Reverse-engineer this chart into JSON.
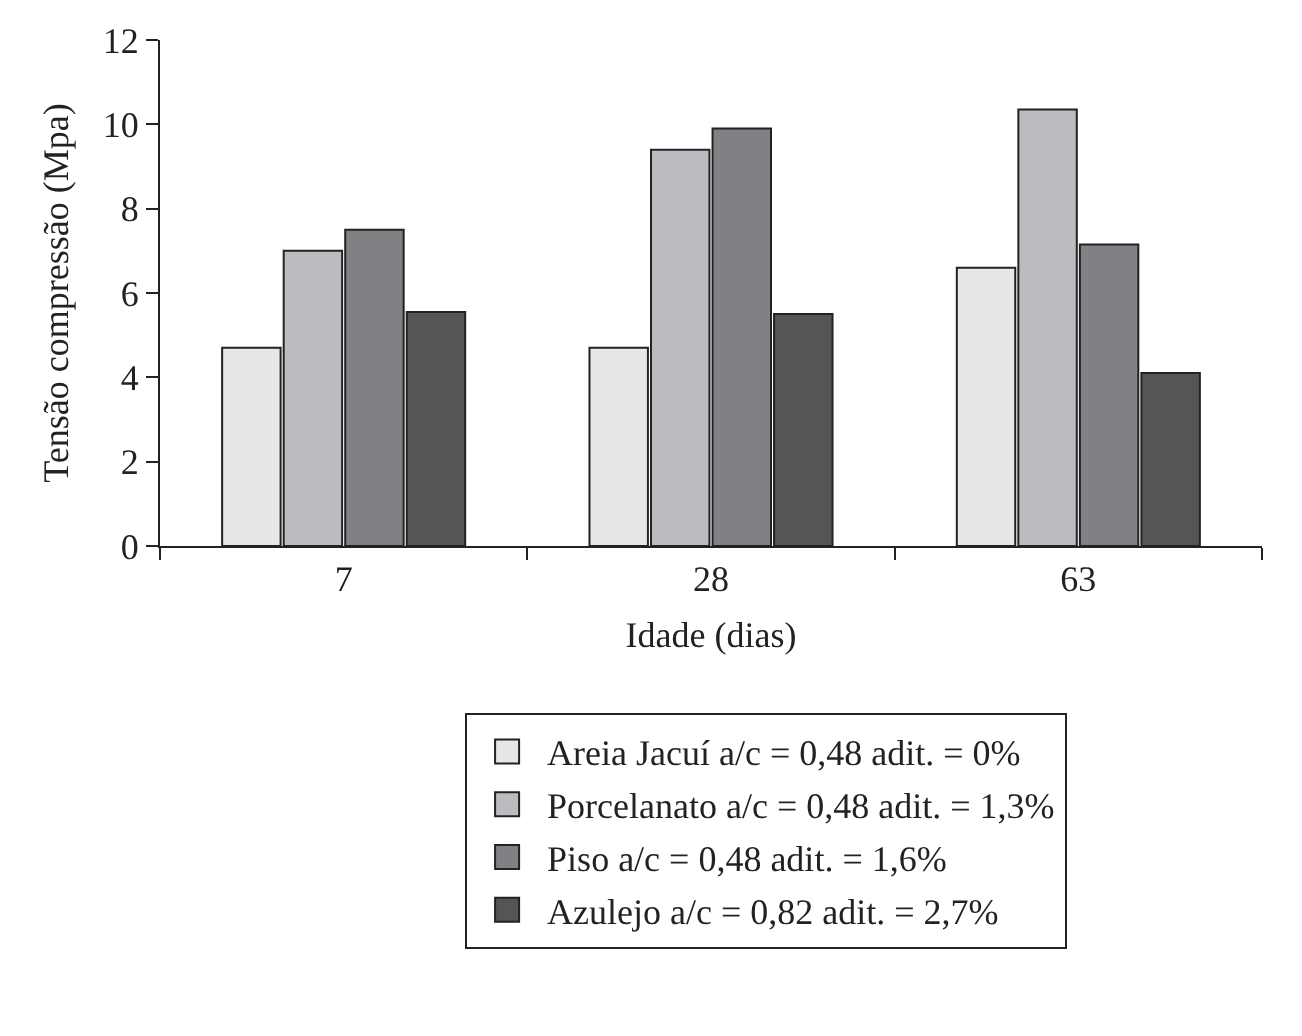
{
  "chart_data": {
    "type": "bar",
    "xlabel": "Idade (dias)",
    "ylabel": "Tensão compressão (Mpa)",
    "categories": [
      "7",
      "28",
      "63"
    ],
    "series": [
      {
        "name": "Areia Jacuí a/c = 0,48 adit. = 0%",
        "color": "#e6e7e9",
        "values": [
          4.7,
          4.7,
          6.6
        ]
      },
      {
        "name": "Porcelanato a/c = 0,48 adit. = 1,3%",
        "color": "#bbbcc0",
        "values": [
          7.0,
          9.4,
          10.35
        ]
      },
      {
        "name": "Piso a/c = 0,48 adit. = 1,6%",
        "color": "#808185",
        "values": [
          7.5,
          9.9,
          7.15
        ]
      },
      {
        "name": "Azulejo a/c = 0,82 adit. = 2,7%",
        "color": "#545557",
        "values": [
          5.55,
          5.5,
          4.1
        ]
      }
    ],
    "ylim": [
      0,
      12
    ],
    "yticks": [
      0,
      2,
      4,
      6,
      8,
      10,
      12
    ],
    "grid": false,
    "legend": "bottom"
  }
}
